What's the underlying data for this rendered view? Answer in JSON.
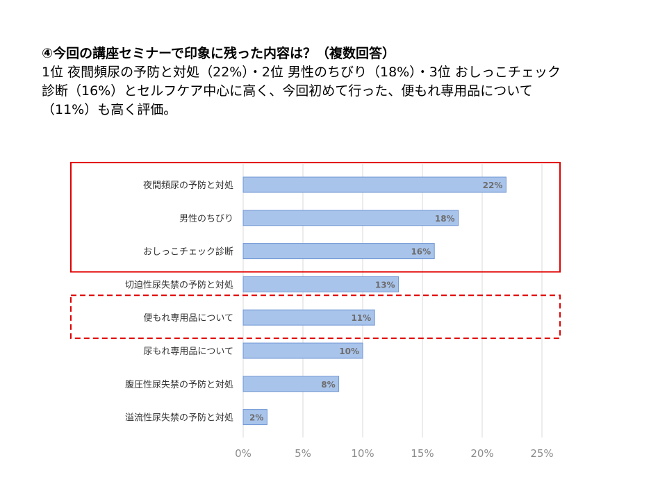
{
  "slide": {
    "title": "④今回の講座セミナーで印象に残った内容は？（複数回答）",
    "summary": [
      "1位 夜間頻尿の予防と対処（22%）・2位 男性のちびり（18%）・3位 おしっこチェック",
      "診断（16%）とセルフケア中心に高く、今回初めて行った、便もれ専用品について",
      "（11%）も高く評価。"
    ]
  },
  "colors": {
    "bar_fill": "#a9c4eb",
    "bar_edge": "#6f96d3",
    "highlight_box": "#e00000",
    "grid": "#d9d9d9"
  },
  "chart_data": {
    "type": "bar",
    "orientation": "horizontal",
    "categories": [
      "夜間頻尿の予防と対処",
      "男性のちびり",
      "おしっこチェック診断",
      "切迫性尿失禁の予防と対処",
      "便もれ専用品について",
      "尿もれ専用品について",
      "腹圧性尿失禁の予防と対処",
      "溢流性尿失禁の予防と対処"
    ],
    "values": [
      22,
      18,
      16,
      13,
      11,
      10,
      8,
      2
    ],
    "data_labels": [
      "22%",
      "18%",
      "16%",
      "13%",
      "11%",
      "10%",
      "8%",
      "2%"
    ],
    "xlim": [
      0,
      25
    ],
    "xticks": [
      0,
      5,
      10,
      15,
      20,
      25
    ],
    "xtick_labels": [
      "0%",
      "5%",
      "10%",
      "15%",
      "20%",
      "25%"
    ],
    "grid": "vertical",
    "legend": "none",
    "highlights": [
      {
        "style": "solid",
        "categories": [
          "夜間頻尿の予防と対処",
          "男性のちびり",
          "おしっこチェック診断"
        ]
      },
      {
        "style": "dashed",
        "categories": [
          "便もれ専用品について"
        ]
      }
    ]
  }
}
